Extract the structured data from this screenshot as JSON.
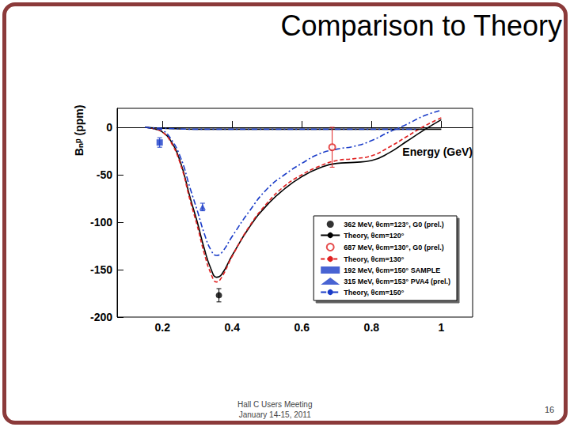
{
  "slide": {
    "title": "Comparison to Theory",
    "footer": [
      "Hall C Users Meeting",
      "January 14-15, 2011"
    ],
    "page_number": "16"
  },
  "chart_data": {
    "type": "line",
    "x_label": "Energy (GeV)",
    "y_label": "Bₙᵖ (ppm)",
    "xlim": [
      0.07,
      1.09
    ],
    "xticks": [
      0.2,
      0.4,
      0.6,
      0.8,
      1
    ],
    "ylim": [
      -200,
      20
    ],
    "yticks": [
      -200,
      -150,
      -100,
      -50,
      0
    ],
    "grid": false,
    "legend": "lower right",
    "series": [
      {
        "name": "362 MeV, θcm=123°, G0 (prel.)",
        "type": "scatter",
        "marker": "circle",
        "color": "#000000",
        "x": [
          0.362
        ],
        "values": [
          -177
        ],
        "errors": [
          7
        ]
      },
      {
        "name": "Theory, θcm=120°",
        "type": "line",
        "line_style": "solid",
        "color": "#000000",
        "x": [
          0.15,
          0.17,
          0.19,
          0.2,
          0.22,
          0.25,
          0.28,
          0.3,
          0.32,
          0.34,
          0.355,
          0.37,
          0.4,
          0.45,
          0.5,
          0.55,
          0.6,
          0.65,
          0.7,
          0.75,
          0.8,
          0.85,
          0.9,
          0.95,
          1.0
        ],
        "values": [
          0,
          -1,
          -3,
          -5,
          -12,
          -35,
          -75,
          -100,
          -128,
          -150,
          -158,
          -155,
          -135,
          -105,
          -82,
          -65,
          -52,
          -43,
          -38,
          -37,
          -35,
          -27,
          -15,
          -3,
          8
        ]
      },
      {
        "name": "687 MeV, θcm=130°, G0 (prel.)",
        "type": "scatter",
        "marker": "circle_open",
        "color": "#e02020",
        "x": [
          0.687
        ],
        "values": [
          -21
        ],
        "errors": [
          21
        ]
      },
      {
        "name": "Theory, θcm=130°",
        "type": "line",
        "line_style": "dashed",
        "color": "#e02020",
        "x": [
          0.15,
          0.17,
          0.19,
          0.2,
          0.22,
          0.25,
          0.28,
          0.3,
          0.32,
          0.34,
          0.355,
          0.37,
          0.4,
          0.45,
          0.5,
          0.55,
          0.6,
          0.65,
          0.7,
          0.75,
          0.8,
          0.85,
          0.9,
          0.95,
          1.0
        ],
        "values": [
          0,
          -1,
          -3,
          -5,
          -13,
          -37,
          -78,
          -104,
          -133,
          -155,
          -163,
          -158,
          -136,
          -104,
          -80,
          -62,
          -50,
          -41,
          -35,
          -33,
          -30,
          -21,
          -10,
          1,
          10
        ]
      },
      {
        "name": "192 MeV, θcm=150° SAMPLE",
        "type": "scatter",
        "marker": "square",
        "color": "#1a3cc8",
        "x": [
          0.192
        ],
        "values": [
          -16
        ],
        "errors": [
          5
        ]
      },
      {
        "name": "315 MeV, θcm=153° PVA4 (prel.)",
        "type": "scatter",
        "marker": "triangle",
        "color": "#1a3cc8",
        "x": [
          0.315
        ],
        "values": [
          -84
        ],
        "errors": [
          4
        ]
      },
      {
        "name": "Theory, θcm=150°",
        "type": "line",
        "line_style": "dashdot",
        "color": "#1a3cc8",
        "x": [
          0.15,
          0.17,
          0.19,
          0.2,
          0.22,
          0.25,
          0.28,
          0.3,
          0.32,
          0.34,
          0.355,
          0.37,
          0.4,
          0.45,
          0.5,
          0.55,
          0.6,
          0.65,
          0.7,
          0.75,
          0.8,
          0.85,
          0.9,
          0.95,
          1.0
        ],
        "values": [
          0,
          -1,
          -2,
          -3,
          -10,
          -30,
          -65,
          -88,
          -112,
          -130,
          -135,
          -132,
          -115,
          -88,
          -65,
          -50,
          -38,
          -28,
          -23,
          -20,
          -14,
          -5,
          3,
          12,
          18
        ]
      },
      {
        "type": "line",
        "line_style": "solid",
        "color": "#000000",
        "x": [
          0.15,
          0.2,
          0.3,
          0.5,
          0.7,
          0.9,
          1.0
        ],
        "values": [
          0,
          -1,
          -2,
          -2,
          -2,
          -2,
          -2
        ]
      },
      {
        "type": "line",
        "line_style": "dashdot",
        "color": "#1a3cc8",
        "x": [
          0.15,
          0.2,
          0.3,
          0.5,
          0.7,
          0.9,
          0.93
        ],
        "values": [
          0,
          -1,
          -2,
          -2,
          -2,
          -2,
          -2
        ]
      }
    ]
  }
}
